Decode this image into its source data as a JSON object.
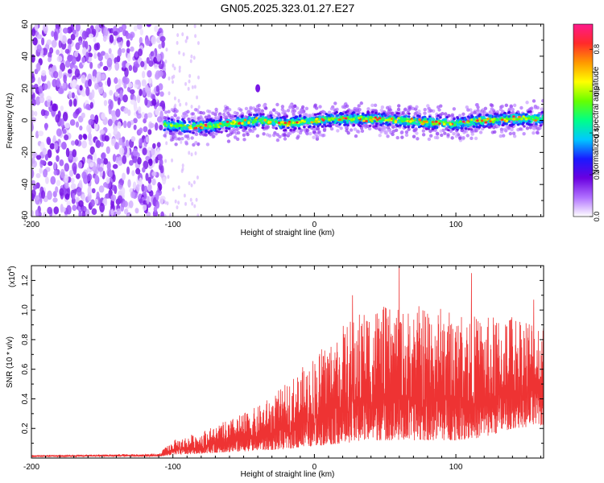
{
  "title": "GN05.2025.323.01.27.E27",
  "chart_data": [
    {
      "type": "heatmap",
      "name": "spectrogram",
      "xlabel": "Height of straight line (km)",
      "ylabel": "Frequency (Hz)",
      "xlim": [
        -200,
        162
      ],
      "ylim": [
        -60,
        60
      ],
      "xticks": [
        -200,
        -100,
        0,
        100
      ],
      "yticks": [
        -60,
        -40,
        -20,
        0,
        20,
        40,
        60
      ],
      "noise_region_km": [
        -200,
        -106
      ],
      "signal_band_center_hz": [
        [
          -106,
          -3
        ],
        [
          -80,
          -4
        ],
        [
          -60,
          -2
        ],
        [
          -40,
          0
        ],
        [
          -20,
          -2
        ],
        [
          0,
          0
        ],
        [
          20,
          1
        ],
        [
          40,
          1
        ],
        [
          60,
          0
        ],
        [
          80,
          -1
        ],
        [
          100,
          -2
        ],
        [
          120,
          0
        ],
        [
          140,
          1
        ],
        [
          162,
          1
        ]
      ],
      "signal_band_halfwidth_hz": 5,
      "isolated_feature": {
        "x_km": -40,
        "freq_hz": 20
      },
      "colorbar": {
        "label": "Normalized spectral amplitude",
        "ticks": [
          "0.0",
          "0.2",
          "0.4",
          "0.6",
          "0.8"
        ],
        "range": [
          0,
          0.92
        ],
        "colors": [
          "#ffffff",
          "#b070ff",
          "#6a00e0",
          "#1a1aff",
          "#00c8ff",
          "#00ff88",
          "#66ff00",
          "#ffff00",
          "#ff9900",
          "#ff2a2a",
          "#ff1a8c"
        ]
      }
    },
    {
      "type": "line",
      "name": "snr",
      "xlabel": "Height of straight line (km)",
      "ylabel": "SNR (10 * v/v)",
      "yscale_label": "(x10",
      "yscale_exp": "4",
      "xlim": [
        -200,
        162
      ],
      "ylim": [
        0,
        1.3
      ],
      "xticks": [
        -200,
        -100,
        0,
        100
      ],
      "yticks": [
        "0.2",
        "0.4",
        "0.6",
        "0.8",
        "1.0",
        "1.2"
      ],
      "series_color": "#ee3333",
      "envelope": {
        "x": [
          -200,
          -110,
          -100,
          -80,
          -60,
          -40,
          -20,
          0,
          20,
          40,
          60,
          80,
          100,
          120,
          140,
          162
        ],
        "lower": [
          0.01,
          0.01,
          0.02,
          0.03,
          0.04,
          0.05,
          0.06,
          0.08,
          0.1,
          0.12,
          0.12,
          0.12,
          0.12,
          0.14,
          0.2,
          0.22
        ],
        "upper": [
          0.02,
          0.03,
          0.12,
          0.18,
          0.26,
          0.35,
          0.5,
          0.7,
          0.9,
          1.05,
          1.0,
          1.05,
          1.0,
          0.95,
          1.0,
          0.95
        ]
      },
      "peaks": [
        {
          "x": 60,
          "y": 1.3
        },
        {
          "x": 111,
          "y": 1.25
        },
        {
          "x": 155,
          "y": 1.07
        },
        {
          "x": 27,
          "y": 1.1
        }
      ]
    }
  ]
}
